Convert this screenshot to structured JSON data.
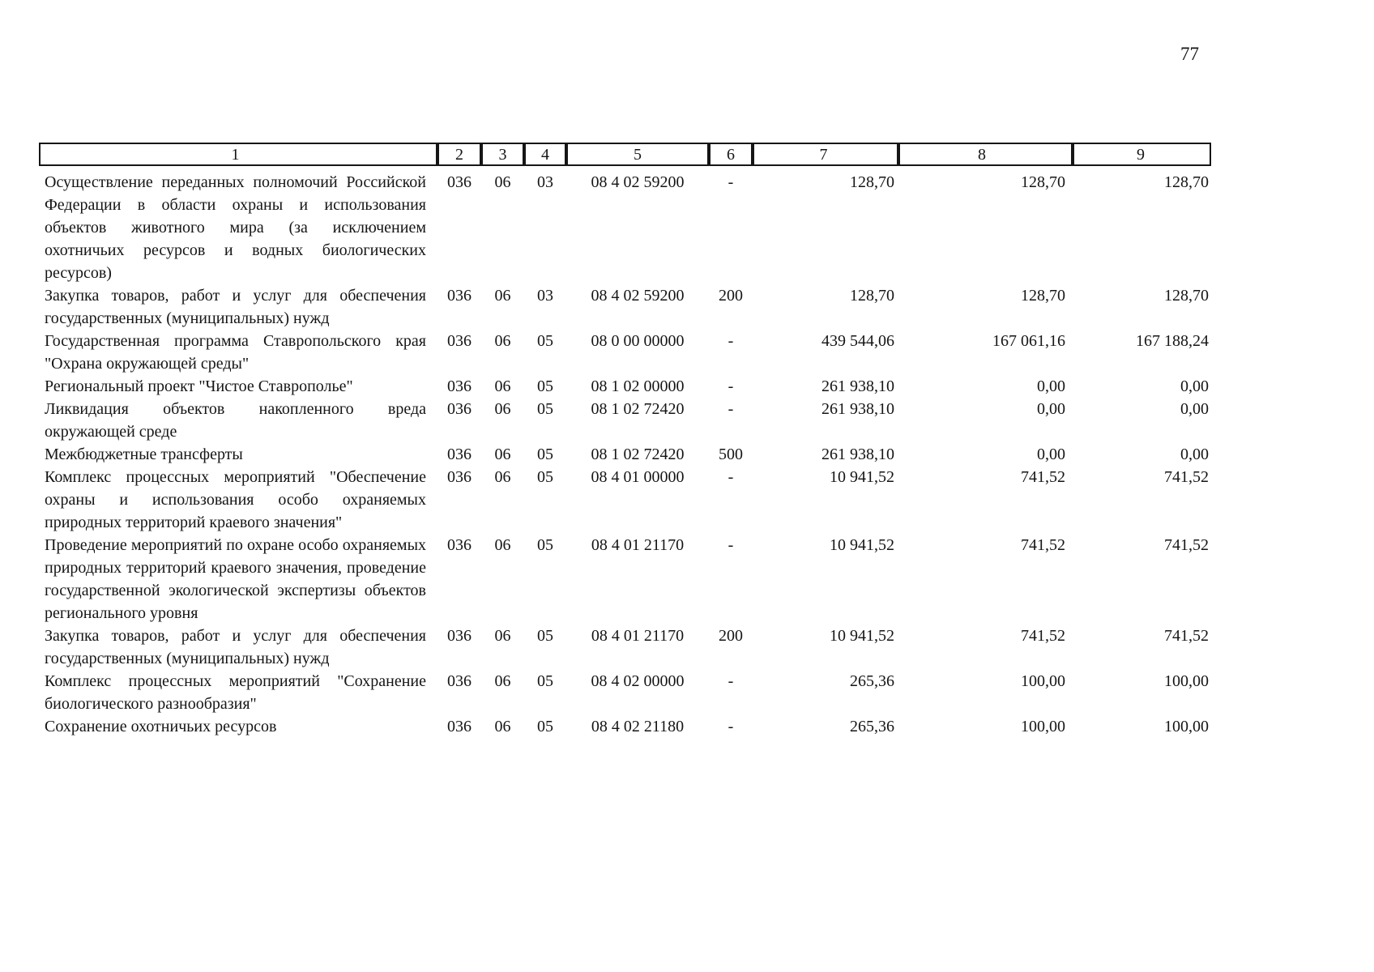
{
  "page": {
    "number": "77"
  },
  "table": {
    "header": [
      "1",
      "2",
      "3",
      "4",
      "5",
      "6",
      "7",
      "8",
      "9"
    ],
    "rows": [
      {
        "cells": [
          "Осуществление переданных полномочий Российской Федерации в области охраны и использования объектов животного мира (за исключением охотничьих ресурсов и водных биологических ресурсов)",
          "036",
          "06",
          "03",
          "08 4 02 59200",
          "-",
          "128,70",
          "128,70",
          "128,70"
        ]
      },
      {
        "cells": [
          "Закупка товаров, работ и услуг для обеспечения государственных (муниципальных) нужд",
          "036",
          "06",
          "03",
          "08 4 02 59200",
          "200",
          "128,70",
          "128,70",
          "128,70"
        ]
      },
      {
        "cells": [
          "Государственная программа Ставропольского края \"Охрана окружающей среды\"",
          "036",
          "06",
          "05",
          "08 0 00 00000",
          "-",
          "439 544,06",
          "167 061,16",
          "167 188,24"
        ]
      },
      {
        "cells": [
          "Региональный проект \"Чистое Ставрополье\"",
          "036",
          "06",
          "05",
          "08 1 02 00000",
          "-",
          "261 938,10",
          "0,00",
          "0,00"
        ]
      },
      {
        "cells": [
          "Ликвидация объектов накопленного вреда окружающей среде",
          "036",
          "06",
          "05",
          "08 1 02 72420",
          "-",
          "261 938,10",
          "0,00",
          "0,00"
        ]
      },
      {
        "cells": [
          "Межбюджетные трансферты",
          "036",
          "06",
          "05",
          "08 1 02 72420",
          "500",
          "261 938,10",
          "0,00",
          "0,00"
        ]
      },
      {
        "cells": [
          "Комплекс процессных мероприятий \"Обеспечение охраны и использования особо охраняемых природных территорий краевого значения\"",
          "036",
          "06",
          "05",
          "08 4 01 00000",
          "-",
          "10 941,52",
          "741,52",
          "741,52"
        ]
      },
      {
        "cells": [
          "Проведение мероприятий по охране особо охраняемых природных территорий краевого значения, проведение государственной экологической экспертизы объектов регионального уровня",
          "036",
          "06",
          "05",
          "08 4 01 21170",
          "-",
          "10 941,52",
          "741,52",
          "741,52"
        ]
      },
      {
        "cells": [
          "Закупка товаров, работ и услуг для обеспечения государственных (муниципальных) нужд",
          "036",
          "06",
          "05",
          "08 4 01 21170",
          "200",
          "10 941,52",
          "741,52",
          "741,52"
        ]
      },
      {
        "cells": [
          "Комплекс процессных мероприятий \"Сохранение биологического разнообразия\"",
          "036",
          "06",
          "05",
          "08 4 02 00000",
          "-",
          "265,36",
          "100,00",
          "100,00"
        ]
      },
      {
        "cells": [
          "Сохранение охотничьих ресурсов",
          "036",
          "06",
          "05",
          "08 4 02 21180",
          "-",
          "265,36",
          "100,00",
          "100,00"
        ]
      }
    ]
  }
}
